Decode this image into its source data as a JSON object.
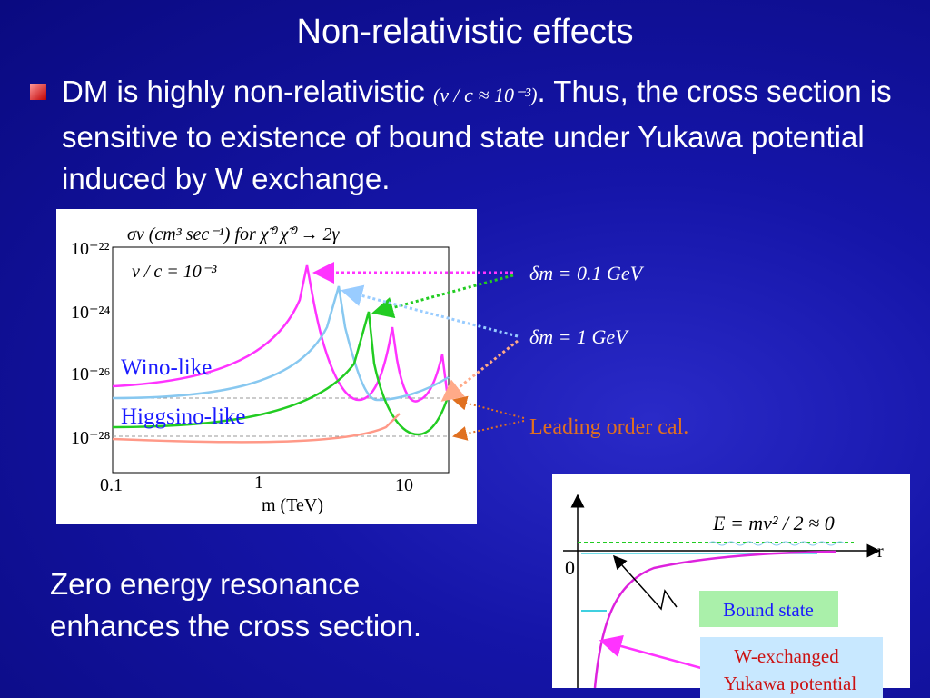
{
  "title": "Non-relativistic effects",
  "bullet": {
    "text_before": "DM is highly non-relativistic",
    "formula": "(v / c ≈ 10⁻³)",
    "text_after": ". Thus, the cross section is sensitive to existence of bound state under Yukawa potential induced by W exchange."
  },
  "plot": {
    "header": "σv (cm³ sec⁻¹)    for χ̃⁰ χ̃⁰ → 2γ",
    "velocity": "v / c = 10⁻³",
    "y_ticks": [
      "10⁻²²",
      "10⁻²⁴",
      "10⁻²⁶",
      "10⁻²⁸"
    ],
    "x_ticks": [
      "0.1",
      "1",
      "10"
    ],
    "x_label": "m (TeV)",
    "labels": [
      "Wino-like",
      "Higgsino-like"
    ]
  },
  "annotations": [
    "δm = 0.1 GeV",
    "δm = 1 GeV",
    "Leading order cal."
  ],
  "conclusion": [
    "Zero energy resonance",
    "enhances the cross section."
  ],
  "potential_diagram": {
    "energy": "E = mv² / 2 ≈ 0",
    "axis_r": "r",
    "origin": "0",
    "bound_state": "Bound state",
    "potential": [
      "W-exchanged",
      "Yukawa potential"
    ]
  }
}
